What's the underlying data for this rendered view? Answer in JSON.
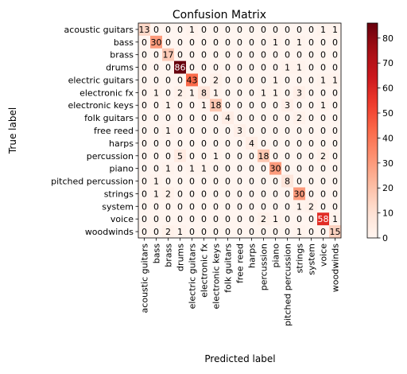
{
  "chart_data": {
    "type": "heatmap",
    "title": "Confusion Matrix",
    "xlabel": "Predicted label",
    "ylabel": "True label",
    "labels": [
      "acoustic guitars",
      "bass",
      "brass",
      "drums",
      "electric guitars",
      "electronic fx",
      "electronic keys",
      "folk guitars",
      "free reed",
      "harps",
      "percussion",
      "piano",
      "pitched percussion",
      "strings",
      "system",
      "voice",
      "woodwinds"
    ],
    "matrix": [
      [
        13,
        0,
        0,
        0,
        1,
        0,
        0,
        0,
        0,
        0,
        0,
        0,
        0,
        0,
        0,
        1,
        1
      ],
      [
        0,
        30,
        0,
        0,
        0,
        0,
        0,
        0,
        0,
        0,
        0,
        1,
        0,
        1,
        0,
        0,
        0
      ],
      [
        0,
        0,
        17,
        0,
        0,
        0,
        0,
        0,
        0,
        0,
        0,
        0,
        0,
        0,
        0,
        0,
        0
      ],
      [
        0,
        0,
        0,
        86,
        0,
        0,
        0,
        0,
        0,
        0,
        0,
        0,
        1,
        1,
        0,
        0,
        0
      ],
      [
        0,
        0,
        0,
        0,
        43,
        0,
        2,
        0,
        0,
        0,
        0,
        1,
        0,
        0,
        0,
        1,
        1
      ],
      [
        0,
        1,
        0,
        2,
        1,
        8,
        1,
        0,
        0,
        0,
        1,
        1,
        0,
        3,
        0,
        0,
        0
      ],
      [
        0,
        0,
        1,
        0,
        0,
        1,
        18,
        0,
        0,
        0,
        0,
        0,
        3,
        0,
        0,
        1,
        0
      ],
      [
        0,
        0,
        0,
        0,
        0,
        0,
        0,
        4,
        0,
        0,
        0,
        0,
        0,
        2,
        0,
        0,
        0
      ],
      [
        0,
        0,
        1,
        0,
        0,
        0,
        0,
        0,
        3,
        0,
        0,
        0,
        0,
        0,
        0,
        0,
        0
      ],
      [
        0,
        0,
        0,
        0,
        0,
        0,
        0,
        0,
        0,
        4,
        0,
        0,
        0,
        0,
        0,
        0,
        0
      ],
      [
        0,
        0,
        0,
        5,
        0,
        0,
        1,
        0,
        0,
        0,
        18,
        0,
        0,
        0,
        0,
        2,
        0
      ],
      [
        0,
        0,
        1,
        0,
        1,
        1,
        0,
        0,
        0,
        0,
        0,
        30,
        0,
        0,
        0,
        0,
        0
      ],
      [
        0,
        1,
        0,
        0,
        0,
        0,
        0,
        0,
        0,
        0,
        0,
        0,
        8,
        0,
        0,
        0,
        0
      ],
      [
        0,
        1,
        2,
        0,
        0,
        0,
        0,
        0,
        0,
        0,
        0,
        0,
        0,
        30,
        0,
        0,
        0
      ],
      [
        0,
        0,
        0,
        0,
        0,
        0,
        0,
        0,
        0,
        0,
        0,
        0,
        0,
        1,
        2,
        0,
        0
      ],
      [
        0,
        0,
        0,
        0,
        0,
        0,
        0,
        0,
        0,
        0,
        2,
        1,
        0,
        0,
        0,
        58,
        1
      ],
      [
        0,
        0,
        2,
        1,
        0,
        0,
        0,
        0,
        0,
        0,
        0,
        0,
        0,
        1,
        0,
        0,
        15
      ]
    ],
    "colorbar": {
      "min": 0,
      "max": 86,
      "ticks": [
        0,
        10,
        20,
        30,
        40,
        50,
        60,
        70,
        80
      ]
    },
    "colormap": "Reds",
    "colors": {
      "low": "#fff5f0",
      "high": "#67000d",
      "text_dark": "#000000",
      "text_light": "#ffffff"
    }
  }
}
